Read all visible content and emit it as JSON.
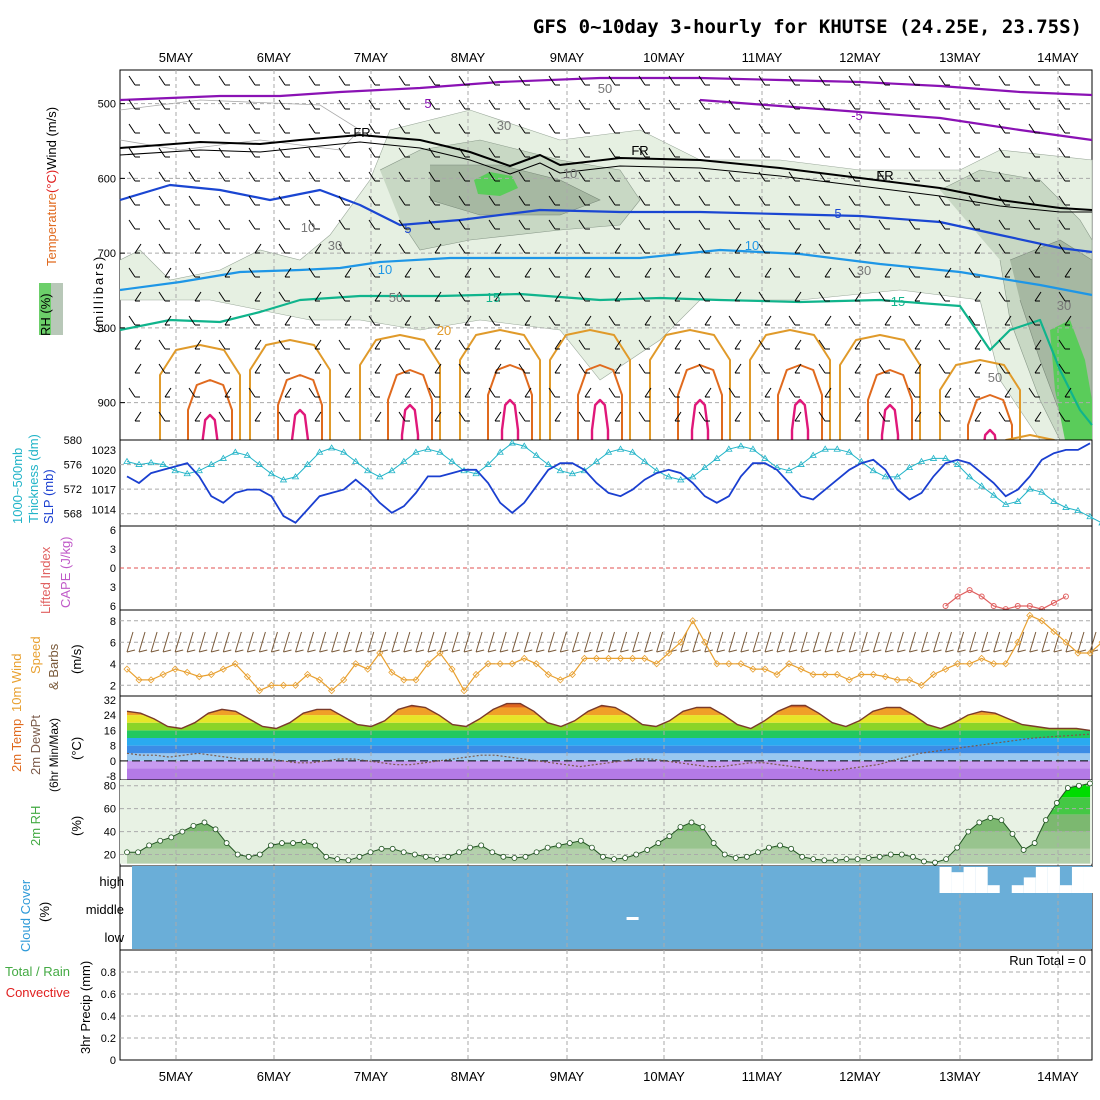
{
  "title": "GFS 0~10day 3-hourly for KHUTSE (24.25E, 23.75S)",
  "dates": [
    "5MAY",
    "6MAY",
    "7MAY",
    "8MAY",
    "9MAY",
    "10MAY",
    "11MAY",
    "12MAY",
    "13MAY",
    "14MAY"
  ],
  "colors": {
    "grid": "#aaaaaa",
    "temp_purple": "#8a12b4",
    "temp_black": "#000000",
    "temp_blue": "#1a46d2",
    "temp_lightblue": "#1e96e6",
    "temp_green": "#10b48c",
    "temp_orange": "#e09a2a",
    "temp_darkorange": "#e06a1e",
    "temp_magenta": "#e0187a",
    "rh_light": "#e6f0e2",
    "rh_mid": "#c8d8c4",
    "rh_dark": "#a6b8a2",
    "rh_green": "#5acc5a",
    "slp": "#1a3fd0",
    "thickness": "#22b4c8",
    "lifted": "#e06060",
    "wind_speed": "#e8a030",
    "barb": "#7a5a3a",
    "dewpt": "#7a5a4a",
    "rh2m": "#44aa44",
    "cloud_bg": "#6aaed8",
    "cloud_block": "#ffffff"
  },
  "labels": {
    "upper_left": {
      "rh": "RH (%)",
      "temperature": "Temperature",
      "temp_unit": "(°C)",
      "wind": "Wind (m/s)",
      "pressure": "(millibars)"
    },
    "slp_panel": {
      "thickness": "1000~500mb",
      "thickness2": "Thickness (dm)",
      "slp": "SLP (mb)"
    },
    "lifted_panel": {
      "lifted": "Lifted Index",
      "cape": "CAPE (J/kg)"
    },
    "wind_panel": {
      "wind10": "10m Wind",
      "speed": "Speed",
      "barbs": "& Barbs",
      "unit": "(m/s)"
    },
    "temp_panel": {
      "temp": "2m Temp",
      "dewpt": "2m DewPt",
      "minmax": "(6hr Min/Max)",
      "unit": "(°C)"
    },
    "rh_panel": {
      "rh": "2m RH",
      "unit": "(%)"
    },
    "cloud_panel": {
      "cloud": "Cloud Cover",
      "unit": "(%)",
      "high": "high",
      "middle": "middle",
      "low": "low"
    },
    "precip_panel": {
      "total": "Total / Rain",
      "convective": "Convective",
      "precip": "3hr Precip (mm)",
      "run_total": "Run Total = 0"
    }
  },
  "chart_data": [
    {
      "type": "contour",
      "name": "upper_air",
      "y_ticks": [
        "500",
        "600",
        "700",
        "800",
        "900"
      ],
      "contour_labels": [
        "5",
        "-5",
        "FR",
        "FR",
        "FR",
        "5",
        "5",
        "10",
        "10",
        "15",
        "15",
        "20",
        "10",
        "30",
        "30",
        "30",
        "50",
        "50",
        "50",
        "30",
        "10"
      ],
      "ylim": [
        950,
        450
      ]
    },
    {
      "type": "line",
      "name": "slp_thickness",
      "y_ticks_left": [
        "580",
        "576",
        "572",
        "568"
      ],
      "y_ticks_right": [
        "1023",
        "1020",
        "1017",
        "1014"
      ],
      "slp": [
        1019,
        1018,
        1019.5,
        1020,
        1020.5,
        1021,
        1019,
        1016,
        1015,
        1016.5,
        1017,
        1017,
        1016,
        1013,
        1012,
        1014,
        1016,
        1016.5,
        1017,
        1018.5,
        1017,
        1015,
        1013.5,
        1014.5,
        1016.5,
        1019,
        1019,
        1019.5,
        1020,
        1020,
        1018,
        1015,
        1013.5,
        1015,
        1017.5,
        1020,
        1021,
        1021,
        1020,
        1018,
        1016.5,
        1016,
        1017,
        1018.5,
        1019.5,
        1020,
        1019.5,
        1018,
        1016,
        1015,
        1016,
        1019,
        1021,
        1021,
        1020,
        1018,
        1016,
        1015.5,
        1017,
        1018.5,
        1020,
        1021,
        1021.5,
        1020,
        1017,
        1015.5,
        1016.5,
        1019,
        1021,
        1021.5,
        1021,
        1019.5,
        1018,
        1016,
        1017,
        1019,
        1021.5,
        1022.5,
        1023,
        1023,
        1024
      ],
      "thickness": [
        576.5,
        576,
        576.3,
        576,
        575,
        574.5,
        575,
        576,
        577,
        578,
        577.5,
        576,
        574.5,
        573.5,
        574,
        576,
        578,
        578.7,
        578,
        576.5,
        575,
        574,
        575,
        576.5,
        578,
        578.5,
        578,
        576.5,
        575,
        574.5,
        576,
        578,
        579.5,
        579,
        577.5,
        576,
        575,
        574.5,
        575,
        576.5,
        578,
        578.5,
        578,
        576.5,
        575,
        574,
        573.5,
        574,
        575.5,
        577,
        578.5,
        579,
        578.5,
        577,
        575.5,
        575,
        576,
        577.5,
        578.5,
        578.5,
        578,
        576.5,
        575,
        574,
        574,
        575.5,
        576.5,
        577,
        577,
        576,
        574,
        572.5,
        571,
        569.5,
        570,
        572,
        571.5,
        570,
        569,
        568.5,
        567.5,
        566.5,
        566
      ],
      "ylim_left": [
        566,
        580
      ],
      "ylim_right": [
        1011.5,
        1024.5
      ]
    },
    {
      "type": "line",
      "name": "lifted_index",
      "y_ticks": [
        "6",
        "3",
        "0",
        "3",
        "6"
      ],
      "values": [
        null,
        null,
        null,
        null,
        null,
        null,
        null,
        null,
        null,
        null,
        null,
        null,
        null,
        null,
        null,
        null,
        null,
        null,
        null,
        null,
        null,
        null,
        null,
        null,
        null,
        null,
        null,
        null,
        null,
        null,
        null,
        null,
        null,
        null,
        null,
        null,
        null,
        null,
        null,
        null,
        null,
        null,
        null,
        null,
        null,
        null,
        null,
        null,
        null,
        null,
        null,
        null,
        null,
        null,
        null,
        null,
        null,
        null,
        null,
        null,
        null,
        null,
        null,
        null,
        null,
        null,
        null,
        null,
        -6,
        -4.5,
        -3.5,
        -4.5,
        -6,
        -6.5,
        -6,
        -6,
        -6.5,
        -5.5,
        -4.5
      ],
      "ylim": [
        -6,
        6
      ]
    },
    {
      "type": "line",
      "name": "wind_speed_10m",
      "y_ticks": [
        "8",
        "6",
        "4",
        "2"
      ],
      "values": [
        3.5,
        2.5,
        2.5,
        3,
        3.5,
        3.2,
        2.8,
        3,
        3.5,
        4,
        2.8,
        1.5,
        2,
        2,
        2,
        3,
        2.5,
        1.5,
        2.5,
        4,
        3.5,
        5,
        3.2,
        2.5,
        2.5,
        4,
        5,
        3.5,
        1.5,
        3,
        4,
        4,
        4,
        4.5,
        4,
        3,
        2.5,
        3,
        4.5,
        4.5,
        4.5,
        4.5,
        4.5,
        4.5,
        4,
        5,
        6,
        8,
        6,
        4,
        4,
        4,
        3.5,
        3.5,
        3,
        4,
        3.5,
        3,
        3,
        3,
        2.5,
        3,
        3,
        2.8,
        2.5,
        2.5,
        2,
        3,
        3.5,
        4,
        4,
        4.5,
        4,
        4,
        6,
        8.5,
        8,
        7,
        6,
        5,
        5,
        6,
        7
      ],
      "ylim": [
        1,
        9
      ]
    },
    {
      "type": "area",
      "name": "temperature_2m",
      "y_ticks": [
        "32",
        "24",
        "16",
        "8",
        "0",
        "-8"
      ],
      "temp": [
        26,
        25,
        22,
        18,
        17,
        20,
        25,
        27,
        26,
        22,
        18,
        17,
        20,
        25,
        27,
        27,
        23,
        19,
        18,
        21,
        27,
        29,
        28,
        24,
        19,
        18,
        22,
        27,
        30,
        30,
        26,
        20,
        18,
        21,
        26,
        29,
        28,
        24,
        19,
        18,
        21,
        26,
        28,
        28,
        24,
        19,
        17,
        21,
        26,
        29,
        29,
        25,
        20,
        18,
        21,
        26,
        28,
        28,
        24,
        19,
        17,
        20,
        24,
        26,
        25,
        22,
        19,
        18,
        17,
        17,
        17,
        16
      ],
      "dewpt": [
        4,
        3,
        3,
        2,
        3,
        4,
        3,
        2,
        1,
        1,
        1,
        0,
        -1,
        -1,
        0,
        1,
        1,
        0,
        -1,
        -2,
        -2,
        -1,
        0,
        1,
        2,
        3,
        3,
        2,
        1,
        0,
        -1,
        -2,
        -3,
        -2,
        -1,
        0,
        1,
        1,
        0,
        -1,
        -2,
        -3,
        -3,
        -2,
        -1,
        -1,
        -2,
        -3,
        -4,
        -5,
        -5,
        -4,
        -3,
        -2,
        0,
        2,
        4,
        5,
        6,
        7,
        8,
        9,
        10,
        11,
        12,
        12.5,
        13,
        13.5,
        14
      ],
      "ylim": [
        -10,
        34
      ]
    },
    {
      "type": "area",
      "name": "rh_2m",
      "y_ticks": [
        "80",
        "60",
        "40",
        "20"
      ],
      "values": [
        22,
        22,
        28,
        32,
        35,
        40,
        45,
        48,
        42,
        30,
        20,
        18,
        20,
        28,
        30,
        30,
        31,
        28,
        18,
        16,
        15,
        18,
        22,
        25,
        25,
        22,
        20,
        18,
        16,
        18,
        22,
        26,
        28,
        22,
        18,
        17,
        18,
        22,
        26,
        28,
        30,
        32,
        26,
        18,
        16,
        17,
        20,
        24,
        30,
        36,
        44,
        48,
        44,
        30,
        20,
        17,
        18,
        22,
        26,
        28,
        25,
        18,
        16,
        15,
        15,
        16,
        16,
        17,
        18,
        20,
        20,
        18,
        14,
        13,
        16,
        26,
        40,
        48,
        52,
        50,
        38,
        24,
        30,
        50,
        65,
        78,
        80,
        82
      ],
      "ylim": [
        10,
        85
      ]
    },
    {
      "type": "bar",
      "name": "cloud_cover",
      "y_ticks": [
        "high",
        "middle",
        "low"
      ],
      "high_values": [
        0,
        0,
        0,
        0,
        0,
        0,
        0,
        0,
        0,
        0,
        0,
        0,
        0,
        0,
        0,
        0,
        0,
        0,
        0,
        0,
        0,
        0,
        0,
        0,
        0,
        0,
        0,
        0,
        0,
        0,
        0,
        0,
        0,
        0,
        0,
        0,
        0,
        0,
        0,
        0,
        0,
        0,
        0,
        0,
        0,
        0,
        0,
        0,
        0,
        0,
        0,
        0,
        0,
        0,
        0,
        0,
        0,
        0,
        0,
        0,
        0,
        0,
        0,
        0,
        0,
        0,
        0,
        0,
        1,
        0.8,
        1,
        1,
        0.3,
        0,
        0.3,
        0.6,
        1,
        1,
        0.3,
        1,
        1,
        0.3,
        0.3
      ],
      "mid_values": [
        0,
        0,
        0,
        0,
        0,
        0,
        0,
        0,
        0,
        0,
        0,
        0,
        0,
        0,
        0,
        0,
        0,
        0,
        0,
        0,
        0,
        0,
        0,
        0,
        0,
        0,
        0,
        0,
        0,
        0,
        0,
        0,
        0,
        0,
        0,
        0,
        0,
        0,
        0,
        0,
        0,
        0,
        0.3,
        0,
        0,
        0,
        0,
        0,
        0,
        0,
        0,
        0,
        0,
        0,
        0,
        0,
        0,
        0,
        0,
        0,
        0,
        0,
        0,
        0,
        0,
        0,
        0,
        0,
        0,
        0,
        0,
        0,
        0,
        0,
        0,
        0,
        0,
        0,
        0,
        0,
        0,
        0,
        0
      ],
      "ylim": [
        0,
        1
      ]
    },
    {
      "type": "bar",
      "name": "precip_3hr",
      "y_ticks": [
        "0.8",
        "0.6",
        "0.4",
        "0.2",
        "0"
      ],
      "values": [],
      "ylim": [
        0,
        1
      ]
    }
  ]
}
